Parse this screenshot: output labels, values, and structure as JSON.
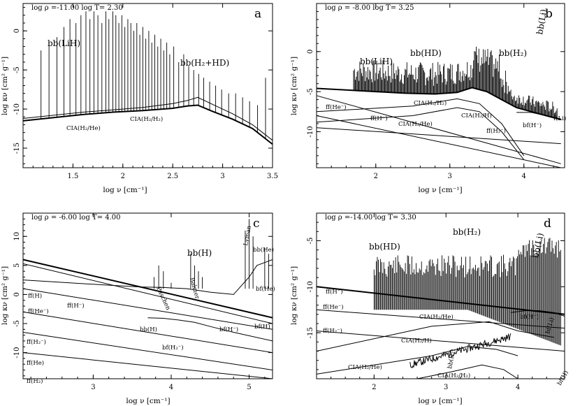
{
  "chart_data": [
    {
      "id": "a",
      "type": "line",
      "panel_label": "a",
      "header": "log ρ =-11.00 log T= 2.30",
      "xlabel": "log ν [cm⁻¹]",
      "ylabel": "log κν [cm² g⁻¹]",
      "xlim": [
        1.0,
        3.5
      ],
      "ylim": [
        -17.5,
        3.5
      ],
      "x_ticks": [
        1.5,
        2,
        2.5,
        3,
        3.5
      ],
      "x_tick_labels": [
        "1.5",
        "2",
        "2.5",
        "3",
        "3.5"
      ],
      "y_ticks": [
        -15,
        -10,
        -5,
        0
      ],
      "y_tick_labels": [
        "-15",
        "-10",
        "-5",
        "0"
      ],
      "series": [
        {
          "label": "CIA(H₂/He)",
          "x": [
            1.0,
            1.3,
            1.6,
            1.9,
            2.2,
            2.5,
            2.65,
            2.75,
            2.9,
            3.1,
            3.3,
            3.5
          ],
          "y": [
            -11.5,
            -11.1,
            -10.7,
            -10.4,
            -10.2,
            -9.9,
            -9.6,
            -9.5,
            -10.3,
            -11.3,
            -12.5,
            -14.5
          ]
        },
        {
          "label": "CIA(H₂/H₂)",
          "x": [
            1.0,
            1.3,
            1.6,
            1.9,
            2.2,
            2.5,
            2.65,
            2.75,
            2.9,
            3.1,
            3.3,
            3.5
          ],
          "y": [
            -11.2,
            -10.8,
            -10.4,
            -10.1,
            -9.8,
            -9.3,
            -8.9,
            -8.5,
            -9.4,
            -10.6,
            -12.0,
            -14.0
          ]
        }
      ],
      "line_peaks": {
        "x": [
          1.18,
          1.26,
          1.34,
          1.41,
          1.47,
          1.53,
          1.58,
          1.63,
          1.67,
          1.71,
          1.75,
          1.79,
          1.83,
          1.86,
          1.9,
          1.93,
          1.96,
          1.99,
          2.02,
          2.05,
          2.08,
          2.11,
          2.14,
          2.17,
          2.2,
          2.23,
          2.26,
          2.29,
          2.32,
          2.35,
          2.38,
          2.41,
          2.44,
          2.47,
          2.51,
          2.56,
          2.61,
          2.66,
          2.71,
          2.76,
          2.81,
          2.87,
          2.93,
          2.99,
          3.06,
          3.13,
          3.2,
          3.27,
          3.35,
          3.43
        ],
        "y": [
          -2.5,
          -1.5,
          -0.8,
          0.5,
          1.5,
          1.0,
          2.0,
          2.5,
          1.5,
          2.5,
          2.0,
          1.0,
          2.5,
          1.5,
          2.5,
          2.0,
          1.0,
          2.0,
          0.5,
          1.5,
          1.0,
          0.0,
          1.0,
          -0.5,
          0.5,
          -1.0,
          0.0,
          -1.5,
          -0.5,
          -2.0,
          -1.0,
          -2.5,
          -1.5,
          -3.0,
          -2.0,
          -4.0,
          -3.0,
          -4.5,
          -5.0,
          -5.5,
          -6.0,
          -6.5,
          -7.0,
          -7.5,
          -8.0,
          -8.0,
          -8.5,
          -9.0,
          -9.5,
          -6.0
        ]
      },
      "annotations": [
        {
          "text": "bb(LiH)"
        },
        {
          "text": "bb(H₂+HD)"
        },
        {
          "text": "CIA(H₂/He)"
        },
        {
          "text": "CIA(H₂/H₂)"
        }
      ]
    },
    {
      "id": "b",
      "type": "line",
      "panel_label": "b",
      "header": "log ρ = -8.00 log T= 3.25",
      "xlabel": "log ν [cm⁻¹]",
      "ylabel": "log κν [cm² g⁻¹]",
      "xlim": [
        1.2,
        4.55
      ],
      "ylim": [
        -14.5,
        6.0
      ],
      "x_ticks": [
        2,
        3,
        4
      ],
      "x_tick_labels": [
        "2",
        "3",
        "4"
      ],
      "y_ticks": [
        -10,
        -5,
        0
      ],
      "y_tick_labels": [
        "-10",
        "-5",
        "0"
      ],
      "series": [
        {
          "label": "envelope",
          "x": [
            1.2,
            1.6,
            2.0,
            2.4,
            2.8,
            3.1,
            3.3,
            3.5,
            3.7,
            3.9,
            4.1,
            4.3,
            4.5
          ],
          "y": [
            -4.6,
            -4.8,
            -5.0,
            -5.2,
            -5.3,
            -5.1,
            -4.5,
            -5.0,
            -6.0,
            -7.0,
            -7.5,
            -8.0,
            -8.5
          ]
        },
        {
          "label": "ff(He⁻)",
          "x": [
            1.2,
            4.5
          ],
          "y": [
            -5.5,
            -14.0
          ]
        },
        {
          "label": "ff(H⁻)",
          "x": [
            1.2,
            4.5
          ],
          "y": [
            -8.0,
            -14.5
          ]
        },
        {
          "label": "CIA(H₂/H₂)",
          "x": [
            1.2,
            2.5,
            3.1,
            3.4,
            3.7,
            4.0
          ],
          "y": [
            -7.5,
            -6.8,
            -5.9,
            -6.5,
            -9.0,
            -13.0
          ]
        },
        {
          "label": "CIA(H₂/He)",
          "x": [
            1.2,
            2.5,
            3.1,
            3.4,
            3.7,
            4.0
          ],
          "y": [
            -8.8,
            -8.0,
            -7.0,
            -7.5,
            -10.0,
            -13.5
          ]
        },
        {
          "label": "CIA(H₂/H)",
          "x": [
            1.2,
            4.5
          ],
          "y": [
            -9.5,
            -11.5
          ]
        },
        {
          "label": "bf(H⁻)",
          "x": [
            3.9,
            4.1,
            4.3,
            4.5
          ],
          "y": [
            -7.6,
            -7.6,
            -8.0,
            -8.4
          ]
        }
      ],
      "annotations": [
        {
          "text": "bb(LiH)"
        },
        {
          "text": "bb(HD)"
        },
        {
          "text": "bb(H₂)"
        },
        {
          "text": "bb(Li)"
        },
        {
          "text": "ff(He⁻)"
        },
        {
          "text": "ff(H⁻)"
        },
        {
          "text": "CIA(H₂/H₂)"
        },
        {
          "text": "CIA(H₂/He)"
        },
        {
          "text": "CIA(H₂/H)"
        },
        {
          "text": "ff(H₂⁻)"
        },
        {
          "text": "bf(H⁻)"
        },
        {
          "text": "f(Li)"
        }
      ]
    },
    {
      "id": "c",
      "type": "line",
      "panel_label": "c",
      "header": "log ρ = -6.00 log T= 4.00",
      "xlabel": "log ν [cm⁻¹]",
      "ylabel": "log κν [cm² g⁻¹]",
      "xlim": [
        2.1,
        5.3
      ],
      "ylim": [
        -14.5,
        14.0
      ],
      "x_ticks": [
        3,
        4,
        5
      ],
      "x_tick_labels": [
        "3",
        "4",
        "5"
      ],
      "y_ticks": [
        -10,
        -5,
        0,
        5,
        10
      ],
      "y_tick_labels": [
        "-10",
        "-5",
        "0",
        "5",
        "10"
      ],
      "series": [
        {
          "label": "ff(H)",
          "x": [
            2.1,
            5.3
          ],
          "y": [
            6.0,
            -4.0
          ]
        },
        {
          "label": "ff(H⁻)",
          "x": [
            2.1,
            5.3
          ],
          "y": [
            5.3,
            -5.0
          ]
        },
        {
          "label": "ff(He⁻)",
          "x": [
            2.1,
            5.3
          ],
          "y": [
            1.0,
            -6.0
          ]
        },
        {
          "label": "ff(H₂⁻)",
          "x": [
            2.1,
            5.3
          ],
          "y": [
            -3.0,
            -10.0
          ]
        },
        {
          "label": "ff(He)",
          "x": [
            2.1,
            5.3
          ],
          "y": [
            -6.5,
            -13.0
          ]
        },
        {
          "label": "ff(H₂)",
          "x": [
            2.1,
            5.3
          ],
          "y": [
            -10.0,
            -14.5
          ]
        },
        {
          "label": "bf(H₂⁻)",
          "x": [
            3.7,
            3.9,
            4.1,
            4.3,
            4.5,
            4.8,
            5.3
          ],
          "y": [
            -4.0,
            -4.1,
            -4.4,
            -4.8,
            -5.5,
            -6.5,
            -8.0
          ]
        },
        {
          "label": "bb(H)",
          "x": [
            2.1,
            2.7,
            3.2,
            3.6,
            3.9,
            4.2,
            4.5,
            4.8,
            5.0,
            5.1,
            5.3
          ],
          "y": [
            2.5,
            2.0,
            1.6,
            1.3,
            1.2,
            1.0,
            0.4,
            0.0,
            3.0,
            5.0,
            6.0
          ]
        }
      ],
      "annotations": [
        {
          "text": "bb(H)"
        },
        {
          "text": "Lyman"
        },
        {
          "text": "Balmer"
        },
        {
          "text": "Paschen"
        },
        {
          "text": "bb(He)"
        },
        {
          "text": "bf(He)"
        },
        {
          "text": "ff(H)"
        },
        {
          "text": "ff(H⁻)"
        },
        {
          "text": "ff(He⁻)"
        },
        {
          "text": "ff(H₂⁻)"
        },
        {
          "text": "ff(He)"
        },
        {
          "text": "ff(H₂)"
        },
        {
          "text": "bb(H)"
        },
        {
          "text": "bf(H₂⁻)"
        },
        {
          "text": "bf(H⁻)"
        },
        {
          "text": "bf(H)"
        }
      ]
    },
    {
      "id": "d",
      "type": "line",
      "panel_label": "d",
      "header": "log ρ =-14.00 log T= 3.30",
      "xlabel": "log ν [cm⁻¹]",
      "ylabel": "log κν [cm² g⁻¹]",
      "xlim": [
        1.2,
        4.65
      ],
      "ylim": [
        -20.0,
        -2.0
      ],
      "x_ticks": [
        2,
        3,
        4
      ],
      "x_tick_labels": [
        "2",
        "3",
        "4"
      ],
      "y_ticks": [
        -15,
        -10,
        -5
      ],
      "y_tick_labels": [
        "-15",
        "-10",
        "-5"
      ],
      "series": [
        {
          "label": "ff(H⁻)",
          "x": [
            1.2,
            4.65
          ],
          "y": [
            -10.0,
            -13.0
          ]
        },
        {
          "label": "ff(He⁻)",
          "x": [
            1.2,
            4.65
          ],
          "y": [
            -12.5,
            -14.5
          ]
        },
        {
          "label": "ff(H₂⁻)",
          "x": [
            1.2,
            4.65
          ],
          "y": [
            -14.8,
            -17.0
          ]
        },
        {
          "label": "CIA(H₂/He)",
          "x": [
            1.2,
            2.8,
            3.6,
            4.0,
            4.5
          ],
          "y": [
            -17.0,
            -14.3,
            -13.8,
            -14.8,
            -15.5
          ]
        },
        {
          "label": "CIA(H₂/H)",
          "x": [
            1.2,
            2.8,
            3.3,
            3.7,
            4.0
          ],
          "y": [
            -19.5,
            -17.5,
            -16.5,
            -16.8,
            -17.5
          ]
        },
        {
          "label": "CIA(H₂/H₂)",
          "x": [
            2.6,
            3.1,
            3.5,
            3.8,
            4.0
          ],
          "y": [
            -20.0,
            -19.2,
            -18.5,
            -19.0,
            -20.0
          ]
        },
        {
          "label": "bf(H⁻)",
          "x": [
            3.9,
            4.1,
            4.3,
            4.5,
            4.65
          ],
          "y": [
            -12.8,
            -12.6,
            -12.6,
            -12.8,
            -13.2
          ]
        }
      ],
      "annotations": [
        {
          "text": "bb(HD)"
        },
        {
          "text": "bb(H₂)"
        },
        {
          "text": "bb(Li)"
        },
        {
          "text": "ff(H⁻)"
        },
        {
          "text": "ff(He⁻)"
        },
        {
          "text": "ff(H₂⁻)"
        },
        {
          "text": "CIA(H₂/He)"
        },
        {
          "text": "CIA(H₂/H)"
        },
        {
          "text": "CIA(H₂/He)"
        },
        {
          "text": "CIA(H₂/H₂)"
        },
        {
          "text": "bf(H⁻)"
        },
        {
          "text": "bf(Li)"
        },
        {
          "text": "bb(H₂)"
        },
        {
          "text": "bf(H)"
        }
      ]
    }
  ]
}
